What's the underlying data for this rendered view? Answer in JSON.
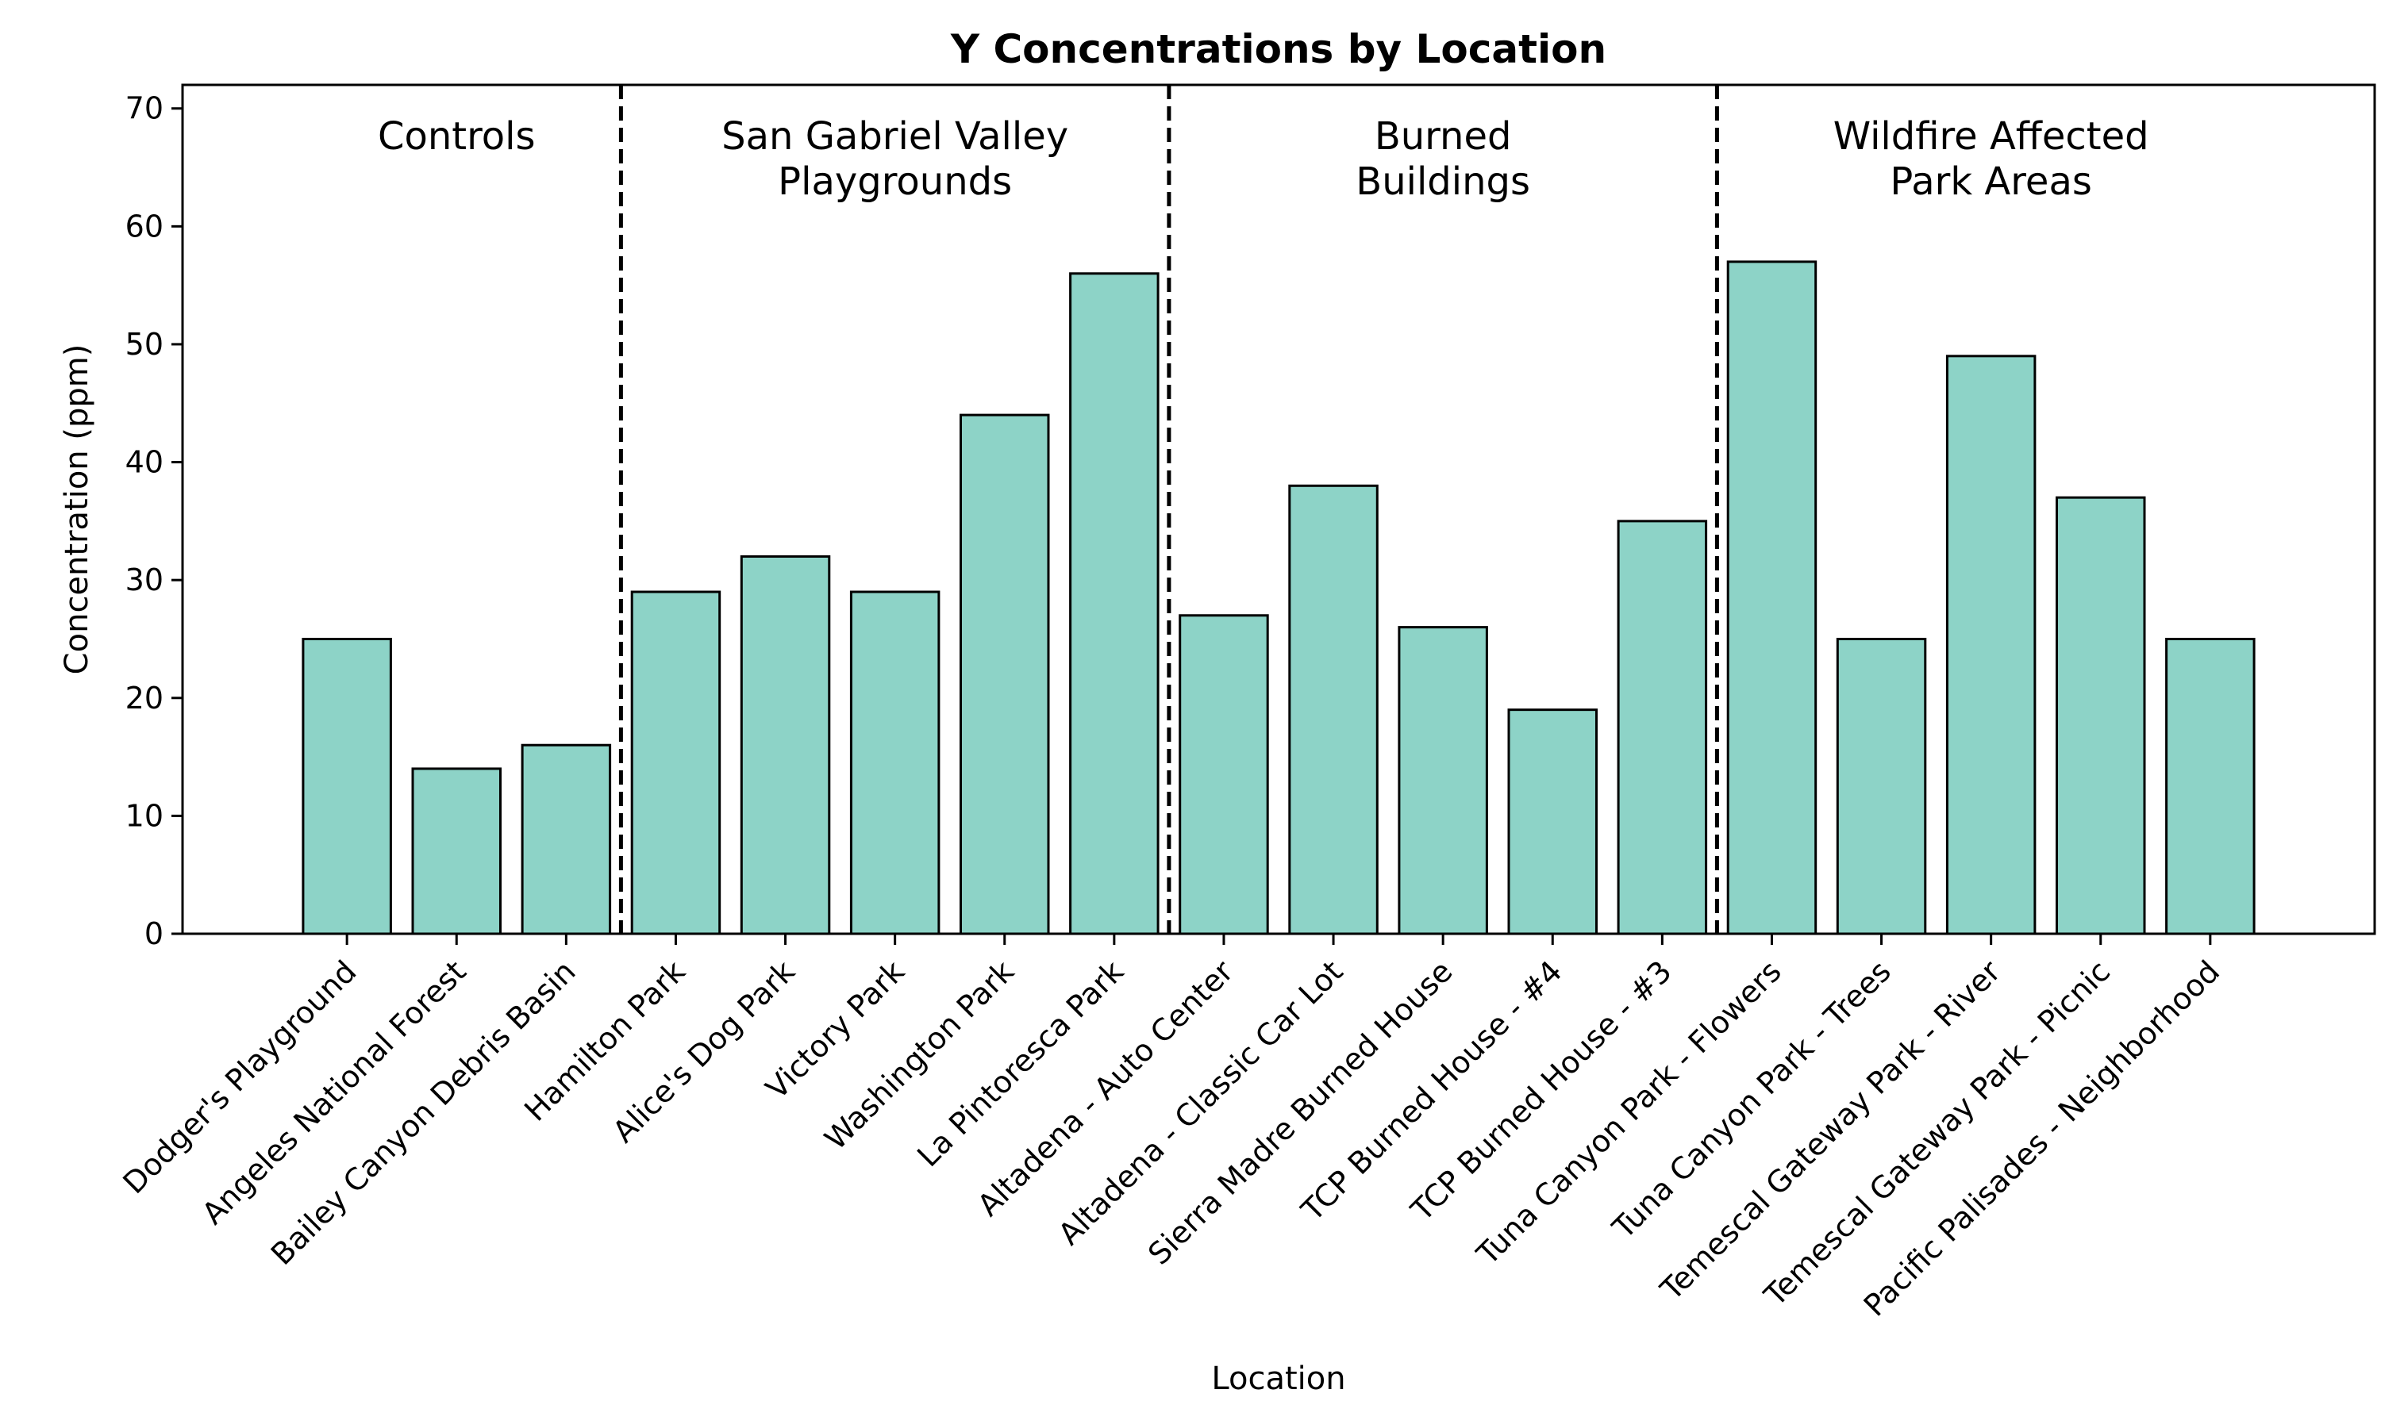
{
  "chart_data": {
    "type": "bar",
    "title": "Y Concentrations by Location",
    "xlabel": "Location",
    "ylabel": "Concentration (ppm)",
    "ylim": [
      0,
      72
    ],
    "yticks": [
      0,
      10,
      20,
      30,
      40,
      50,
      60,
      70
    ],
    "grid": false,
    "categories": [
      "Dodger's Playground",
      "Angeles National Forest",
      "Bailey Canyon Debris Basin",
      "Hamilton Park",
      "Alice's Dog Park",
      "Victory Park",
      "Washington Park",
      "La Pintoresca Park",
      "Altadena - Auto Center",
      "Altadena - Classic Car Lot",
      "Sierra Madre Burned House",
      "TCP Burned House - #4",
      "TCP Burned House - #3",
      "Tuna Canyon Park - Flowers",
      "Tuna Canyon Park - Trees",
      "Temescal Gateway Park - River",
      "Temescal Gateway Park - Picnic",
      "Pacific Palisades - Neighborhood"
    ],
    "values": [
      25,
      14,
      16,
      29,
      32,
      29,
      44,
      56,
      27,
      38,
      26,
      19,
      35,
      57,
      25,
      49,
      37,
      25
    ],
    "bar_color": "#8dd3c7",
    "edge_color": "#000000",
    "groups": [
      {
        "label": [
          "Controls"
        ],
        "start": 0,
        "end": 2
      },
      {
        "label": [
          "San Gabriel Valley",
          "Playgrounds"
        ],
        "start": 3,
        "end": 7
      },
      {
        "label": [
          "Burned",
          "Buildings"
        ],
        "start": 8,
        "end": 12
      },
      {
        "label": [
          "Wildfire Affected",
          "Park Areas"
        ],
        "start": 13,
        "end": 17
      }
    ]
  }
}
